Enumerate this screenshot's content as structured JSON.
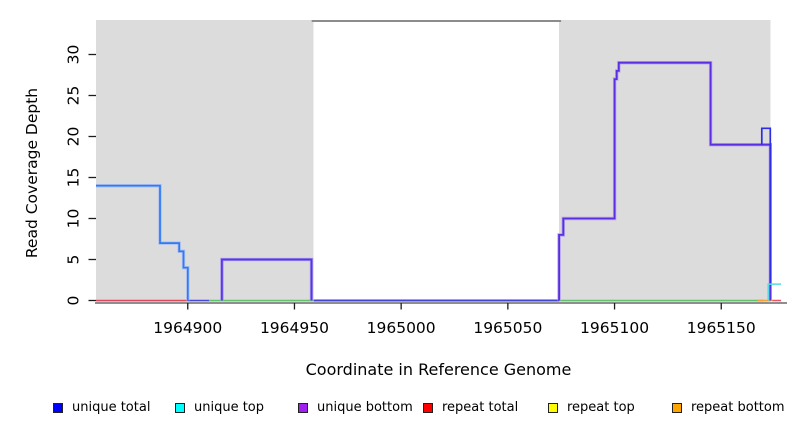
{
  "chart_data": {
    "type": "line",
    "title": "",
    "xlabel": "Coordinate in Reference Genome",
    "ylabel": "Read Coverage Depth",
    "xlim": [
      1964857,
      1965178
    ],
    "ylim": [
      0,
      34.4
    ],
    "x_ticks": [
      1964900,
      1964950,
      1965000,
      1965050,
      1965100,
      1965150
    ],
    "y_ticks": [
      0,
      5,
      10,
      15,
      20,
      25,
      30
    ],
    "grid": "off",
    "legend_position": "bottom",
    "background_shading": {
      "color": "#dcdcdc",
      "regions": [
        {
          "name": "covered-region-left",
          "x1": 1964857,
          "x2": 1964959
        },
        {
          "name": "covered-region-right",
          "x1": 1965074,
          "x2": 1965173
        }
      ]
    },
    "gap_marker": {
      "x1": 1964959,
      "x2": 1965074,
      "color": "#8c8c8c"
    },
    "legend": [
      {
        "label": "unique total",
        "color": "#0000ff"
      },
      {
        "label": "unique top",
        "color": "#00ffff"
      },
      {
        "label": "unique bottom",
        "color": "#a020f0"
      },
      {
        "label": "repeat total",
        "color": "#ff0000"
      },
      {
        "label": "repeat top",
        "color": "#ffff00"
      },
      {
        "label": "repeat bottom",
        "color": "#ffa500"
      }
    ],
    "series": [
      {
        "name": "repeat-total-baseline-left",
        "color": "#e4475c",
        "width": 1.5,
        "points": [
          [
            1964857,
            0
          ],
          [
            1964900,
            0
          ]
        ]
      },
      {
        "name": "unique-baseline-left",
        "color": "#4747e2",
        "width": 1.5,
        "points": [
          [
            1964900,
            0
          ],
          [
            1964910,
            0
          ]
        ]
      },
      {
        "name": "top-strand-baseline-left",
        "color": "#5fc36c",
        "width": 1.5,
        "points": [
          [
            1964910,
            0
          ],
          [
            1964959,
            0
          ]
        ]
      },
      {
        "name": "unique-baseline-gap",
        "color": "#4343da",
        "halo": "#c6b7f3",
        "width": 1.5,
        "points": [
          [
            1964959,
            0
          ],
          [
            1965074,
            0
          ]
        ]
      },
      {
        "name": "top-strand-baseline-right",
        "color": "#5fc36c",
        "width": 1.5,
        "points": [
          [
            1965074,
            0
          ],
          [
            1965170,
            0
          ]
        ]
      },
      {
        "name": "repeat-bottom-baseline-right",
        "color": "#f2a232",
        "width": 1.5,
        "points": [
          [
            1965167,
            0
          ],
          [
            1965174,
            0
          ]
        ]
      },
      {
        "name": "repeat-total-baseline-right",
        "color": "#ea5068",
        "width": 1.5,
        "points": [
          [
            1965174,
            0
          ],
          [
            1965178,
            0
          ]
        ]
      },
      {
        "name": "unique-total-left",
        "color": "#2e7cf2",
        "halo": "#a9bdf2",
        "width": 1.7,
        "points": [
          [
            1964857,
            14
          ],
          [
            1964887,
            14
          ],
          [
            1964887,
            7
          ],
          [
            1964896,
            7
          ],
          [
            1964896,
            6
          ],
          [
            1964898,
            6
          ],
          [
            1964898,
            4
          ],
          [
            1964900,
            4
          ],
          [
            1964900,
            0
          ]
        ]
      },
      {
        "name": "unique-bottom-left-box",
        "color": "#5b35e0",
        "halo": "#a193ee",
        "width": 1.7,
        "points": [
          [
            1964916,
            0
          ],
          [
            1964916,
            5
          ],
          [
            1964958,
            5
          ],
          [
            1964958,
            0
          ]
        ]
      },
      {
        "name": "unique-bottom-right",
        "color": "#5b2fe0",
        "halo": "#b3a3ee",
        "width": 1.8,
        "points": [
          [
            1965074,
            0
          ],
          [
            1965074,
            8
          ],
          [
            1965076,
            8
          ],
          [
            1965076,
            10
          ],
          [
            1965100,
            10
          ],
          [
            1965100,
            27
          ],
          [
            1965101,
            27
          ],
          [
            1965101,
            28
          ],
          [
            1965102,
            28
          ],
          [
            1965102,
            29
          ],
          [
            1965145,
            29
          ],
          [
            1965145,
            19
          ],
          [
            1965173,
            19
          ],
          [
            1965173,
            0
          ]
        ]
      },
      {
        "name": "unique-total-right-spike",
        "color": "#2d2de8",
        "width": 1.7,
        "points": [
          [
            1965169,
            19
          ],
          [
            1965169,
            21
          ],
          [
            1965173,
            21
          ],
          [
            1965173,
            2
          ]
        ]
      },
      {
        "name": "unique-top-right",
        "color": "#55dce3",
        "width": 1.5,
        "points": [
          [
            1965172,
            0
          ],
          [
            1965172,
            2
          ],
          [
            1965178,
            2
          ]
        ]
      }
    ]
  }
}
